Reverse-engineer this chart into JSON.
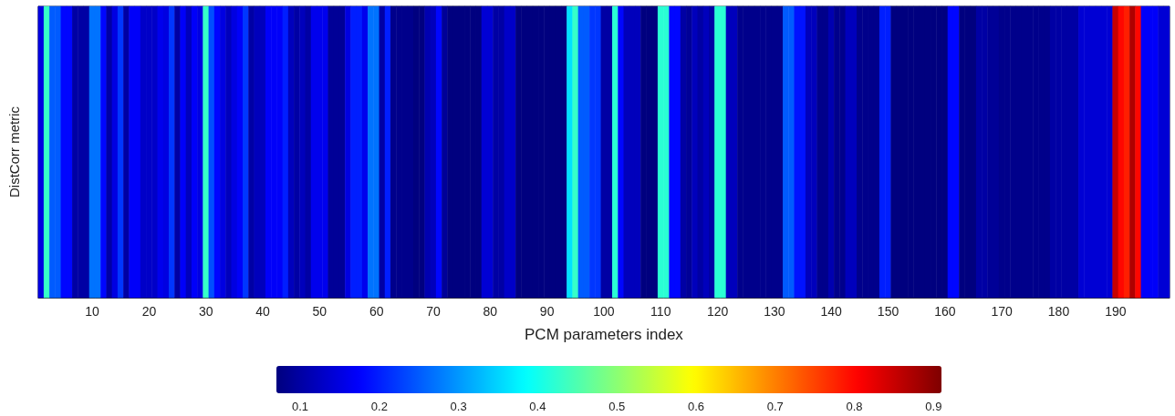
{
  "chart_data": {
    "type": "heatmap",
    "xlabel": "PCM parameters index",
    "ylabel": "DistCorr metric",
    "categories": [
      null,
      null,
      null,
      null,
      null,
      null,
      null,
      null,
      null,
      "10",
      null,
      null,
      null,
      null,
      null,
      null,
      null,
      null,
      null,
      "20",
      null,
      null,
      null,
      null,
      null,
      null,
      null,
      null,
      null,
      "30",
      null,
      null,
      null,
      null,
      null,
      null,
      null,
      null,
      null,
      "40",
      null,
      null,
      null,
      null,
      null,
      null,
      null,
      null,
      null,
      "50",
      null,
      null,
      null,
      null,
      null,
      null,
      null,
      null,
      null,
      "60",
      null,
      null,
      null,
      null,
      null,
      null,
      null,
      null,
      null,
      "70",
      null,
      null,
      null,
      null,
      null,
      null,
      null,
      null,
      null,
      "80",
      null,
      null,
      null,
      null,
      null,
      null,
      null,
      null,
      null,
      "90",
      null,
      null,
      null,
      null,
      null,
      null,
      null,
      null,
      null,
      "100",
      null,
      null,
      null,
      null,
      null,
      null,
      null,
      null,
      null,
      "110",
      null,
      null,
      null,
      null,
      null,
      null,
      null,
      null,
      null,
      "120",
      null,
      null,
      null,
      null,
      null,
      null,
      null,
      null,
      null,
      "130",
      null,
      null,
      null,
      null,
      null,
      null,
      null,
      null,
      null,
      "140",
      null,
      null,
      null,
      null,
      null,
      null,
      null,
      null,
      null,
      "150",
      null,
      null,
      null,
      null,
      null,
      null,
      null,
      null,
      null,
      "160",
      null,
      null,
      null,
      null,
      null,
      null,
      null,
      null,
      null,
      "170",
      null,
      null,
      null,
      null,
      null,
      null,
      null,
      null,
      null,
      "180",
      null,
      null,
      null,
      null,
      null,
      null,
      null,
      null,
      null,
      "190",
      null,
      null,
      null,
      null,
      null,
      null,
      null,
      null,
      null
    ],
    "y_categories": [
      null
    ],
    "cells": [
      [
        0.15,
        0.43,
        0.25,
        0.25,
        0.18,
        0.18,
        0.1,
        0.1,
        0.1,
        0.27,
        0.27,
        0.18,
        0.1,
        0.15,
        0.22,
        0.1,
        0.17,
        0.17,
        0.13,
        0.13,
        0.13,
        0.16,
        0.15,
        0.22,
        0.1,
        0.17,
        0.12,
        0.17,
        0.15,
        0.43,
        0.24,
        0.18,
        0.15,
        0.12,
        0.15,
        0.17,
        0.22,
        0.1,
        0.12,
        0.12,
        0.17,
        0.17,
        0.17,
        0.2,
        0.12,
        0.1,
        0.12,
        0.1,
        0.16,
        0.16,
        0.16,
        0.09,
        0.09,
        0.09,
        0.15,
        0.2,
        0.2,
        0.16,
        0.27,
        0.27,
        0.1,
        0.2,
        0.08,
        0.08,
        0.08,
        0.08,
        0.07,
        0.07,
        0.11,
        0.12,
        0.18,
        0.09,
        0.07,
        0.07,
        0.07,
        0.07,
        0.07,
        0.07,
        0.14,
        0.14,
        0.1,
        0.1,
        0.13,
        0.13,
        0.07,
        0.07,
        0.07,
        0.07,
        0.07,
        0.07,
        0.07,
        0.07,
        0.07,
        0.36,
        0.43,
        0.25,
        0.25,
        0.22,
        0.22,
        0.1,
        0.1,
        0.42,
        0.18,
        0.12,
        0.12,
        0.12,
        0.07,
        0.07,
        0.07,
        0.42,
        0.42,
        0.18,
        0.18,
        0.1,
        0.09,
        0.12,
        0.1,
        0.12,
        0.1,
        0.42,
        0.42,
        0.12,
        0.12,
        0.08,
        0.08,
        0.08,
        0.08,
        0.08,
        0.08,
        0.08,
        0.08,
        0.25,
        0.25,
        0.19,
        0.19,
        0.12,
        0.12,
        0.08,
        0.08,
        0.11,
        0.08,
        0.08,
        0.12,
        0.12,
        0.08,
        0.08,
        0.08,
        0.08,
        0.2,
        0.2,
        0.07,
        0.07,
        0.07,
        0.07,
        0.07,
        0.07,
        0.07,
        0.07,
        0.07,
        0.07,
        0.18,
        0.18,
        0.07,
        0.07,
        0.07,
        0.1,
        0.1,
        0.09,
        0.09,
        0.08,
        0.08,
        0.08,
        0.08,
        0.08,
        0.08,
        0.08,
        0.08,
        0.08,
        0.1,
        0.1,
        0.1,
        0.1,
        0.1,
        0.14,
        0.14,
        0.14,
        0.14,
        0.14,
        0.14,
        0.85,
        0.8,
        0.78,
        0.87,
        0.8,
        0.17,
        0.17,
        0.17,
        0.14,
        0.14
      ]
    ],
    "clim": [
      0.07,
      0.91
    ],
    "cticks": [
      0.1,
      0.2,
      0.3,
      0.4,
      0.5,
      0.6,
      0.7,
      0.8,
      0.9
    ]
  }
}
